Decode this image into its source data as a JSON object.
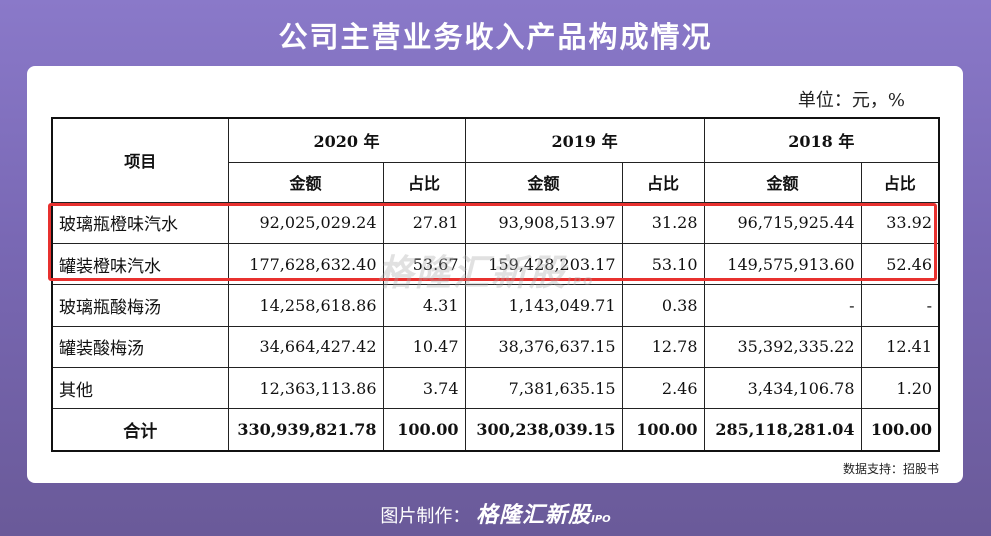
{
  "title": "公司主营业务收入产品构成情况",
  "unit_label": "单位：元，%",
  "table": {
    "item_header": "项目",
    "years": [
      "2020 年",
      "2019 年",
      "2018 年"
    ],
    "sub_headers": {
      "amount": "金额",
      "share": "占比"
    },
    "rows": [
      {
        "name": "玻璃瓶橙味汽水",
        "cells": [
          "92,025,029.24",
          "27.81",
          "93,908,513.97",
          "31.28",
          "96,715,925.44",
          "33.92"
        ]
      },
      {
        "name": "罐装橙味汽水",
        "cells": [
          "177,628,632.40",
          "53.67",
          "159,428,203.17",
          "53.10",
          "149,575,913.60",
          "52.46"
        ]
      },
      {
        "name": "玻璃瓶酸梅汤",
        "cells": [
          "14,258,618.86",
          "4.31",
          "1,143,049.71",
          "0.38",
          "-",
          "-"
        ]
      },
      {
        "name": "罐装酸梅汤",
        "cells": [
          "34,664,427.42",
          "10.47",
          "38,376,637.15",
          "12.78",
          "35,392,335.22",
          "12.41"
        ]
      },
      {
        "name": "其他",
        "cells": [
          "12,363,113.86",
          "3.74",
          "7,381,635.15",
          "2.46",
          "3,434,106.78",
          "1.20"
        ]
      }
    ],
    "total": {
      "name": "合计",
      "cells": [
        "330,939,821.78",
        "100.00",
        "300,238,039.15",
        "100.00",
        "285,118,281.04",
        "100.00"
      ]
    }
  },
  "watermark": {
    "brand": "格隆汇新股",
    "suffix": "IPO"
  },
  "source": "数据支持：招股书",
  "footer": {
    "prefix": "图片制作：",
    "brand": "格隆汇新股",
    "suffix": "IPO"
  }
}
